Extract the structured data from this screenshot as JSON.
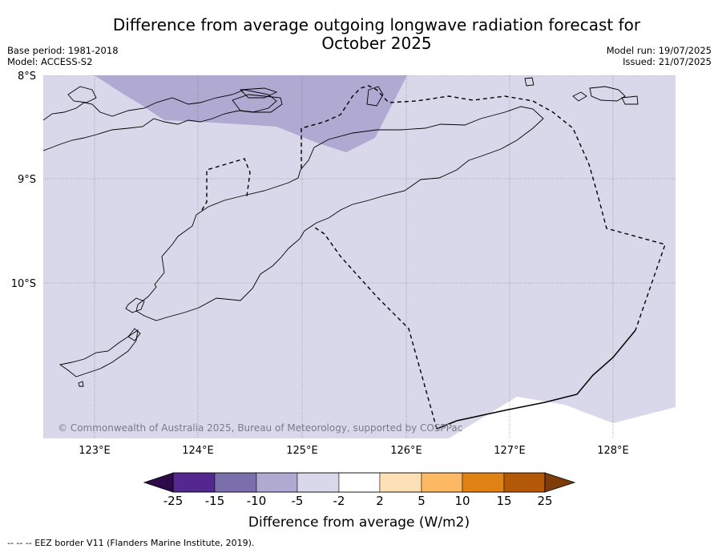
{
  "title": {
    "line1": "Difference from average outgoing longwave radiation forecast for",
    "line2": "October 2025"
  },
  "meta_left": {
    "base_period": "Base period: 1981-2018",
    "model": "Model: ACCESS-S2"
  },
  "meta_right": {
    "model_run": "Model run: 19/07/2025",
    "issued": "Issued: 21/07/2025"
  },
  "map": {
    "lat_labels": [
      "8°S",
      "9°S",
      "10°S"
    ],
    "lon_labels": [
      "123°E",
      "124°E",
      "125°E",
      "126°E",
      "127°E",
      "128°E"
    ],
    "copyright": "© Commonwealth of Australia 2025, Bureau of Meteorology, supported by COSPPac",
    "colors": {
      "light_lavender": "#d8d8ea",
      "medium_lavender": "#b0a9d2"
    }
  },
  "legend": {
    "ticks": [
      "-25",
      "-15",
      "-10",
      "-5",
      "-2",
      "2",
      "5",
      "10",
      "15",
      "25"
    ],
    "colors": [
      "#2d0a4a",
      "#54278f",
      "#7b6fab",
      "#b0a9d2",
      "#d8d8ea",
      "#ffffff",
      "#fee0b6",
      "#fdb863",
      "#e08214",
      "#b35806",
      "#7f3b08"
    ],
    "label": "Difference from average (W/m2)"
  },
  "footnote": "--  --  -- EEZ border V11 (Flanders Marine Institute, 2019)."
}
